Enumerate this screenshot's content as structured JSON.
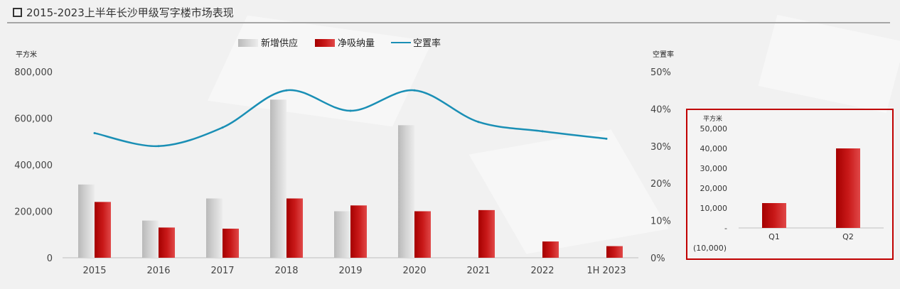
{
  "header": {
    "title": "2015-2023上半年长沙甲级写字楼市场表现"
  },
  "colors": {
    "supply": "#c8c8c8",
    "absorption": "#c00000",
    "vacancy": "#1a8fb5",
    "frame": "#c00000"
  },
  "chart_data": [
    {
      "type": "bar",
      "categories": [
        "2015",
        "2016",
        "2017",
        "2018",
        "2019",
        "2020",
        "2021",
        "2022",
        "1H 2023"
      ],
      "series": [
        {
          "name": "新增供应",
          "values": [
            315000,
            160000,
            255000,
            680000,
            200000,
            570000,
            0,
            0,
            0
          ]
        },
        {
          "name": "净吸纳量",
          "values": [
            240000,
            130000,
            125000,
            255000,
            225000,
            200000,
            205000,
            70000,
            50000
          ]
        },
        {
          "name": "空置率",
          "type": "line",
          "axis": "right",
          "values": [
            33.5,
            30.0,
            35.0,
            45.0,
            39.5,
            45.0,
            36.5,
            34.0,
            32.0
          ]
        }
      ],
      "ylabel": "平方米",
      "ylabel_right": "空置率",
      "ylim": [
        0,
        800000
      ],
      "ylim_right": [
        0,
        50
      ],
      "yticks": [
        "0",
        "200,000",
        "400,000",
        "600,000",
        "800,000"
      ],
      "yticks_right": [
        "0%",
        "10%",
        "20%",
        "30%",
        "40%",
        "50%"
      ],
      "legend": "top-center",
      "grid": false
    },
    {
      "type": "bar",
      "categories": [
        "Q1",
        "Q2"
      ],
      "values": [
        12500,
        40000
      ],
      "ylabel": "平方米",
      "ylim": [
        -10000,
        50000
      ],
      "yticks": [
        "(10,000)",
        "-",
        "10,000",
        "20,000",
        "30,000",
        "40,000",
        "50,000"
      ]
    }
  ]
}
